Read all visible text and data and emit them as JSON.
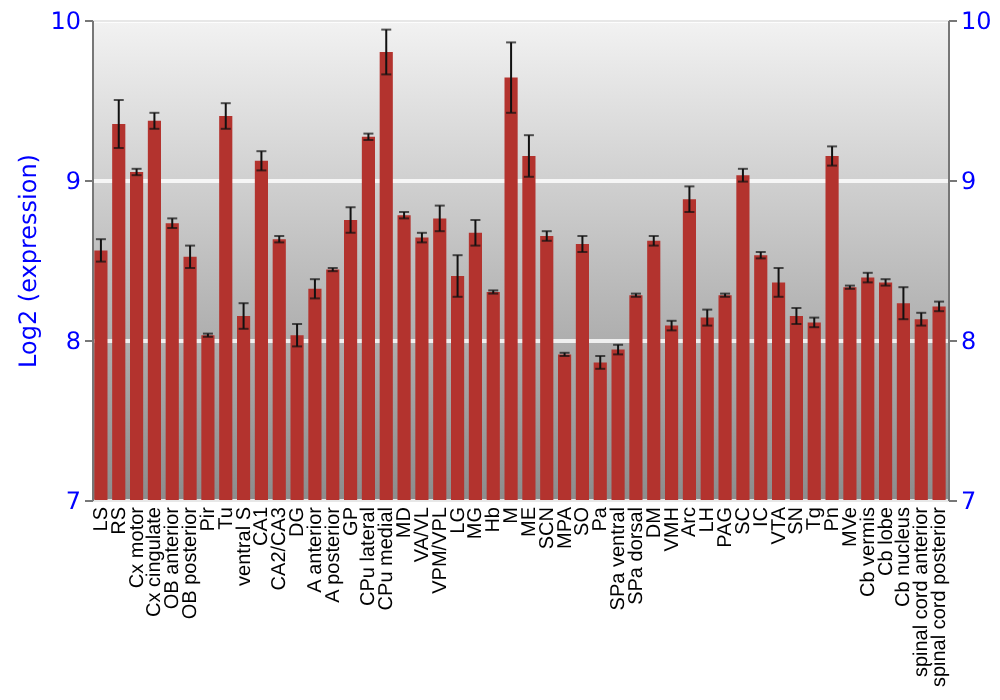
{
  "chart_data": {
    "type": "bar",
    "ylabel": "Log2 (expression)",
    "categories": [
      "LS",
      "RS",
      "Cx motor",
      "Cx cingulate",
      "OB anterior",
      "OB posterior",
      "Pir",
      "Tu",
      "ventral S",
      "CA1",
      "CA2/CA3",
      "DG",
      "A anterior",
      "A posterior",
      "GP",
      "CPu lateral",
      "CPu medial",
      "MD",
      "VA/VL",
      "VPM/VPL",
      "LG",
      "MG",
      "Hb",
      "M",
      "ME",
      "SCN",
      "MPA",
      "SO",
      "Pa",
      "SPa ventral",
      "SPa dorsal",
      "DM",
      "VMH",
      "Arc",
      "LH",
      "PAG",
      "SC",
      "IC",
      "VTA",
      "SN",
      "Tg",
      "Pn",
      "MVe",
      "Cb vermis",
      "Cb lobe",
      "Cb nucleus",
      "spinal cord anterior",
      "spinal cord posterior"
    ],
    "values": [
      8.56,
      9.35,
      9.05,
      9.37,
      8.73,
      8.52,
      8.03,
      9.4,
      8.15,
      9.12,
      8.63,
      8.03,
      8.32,
      8.44,
      8.75,
      9.27,
      9.8,
      8.78,
      8.64,
      8.76,
      8.4,
      8.67,
      8.3,
      9.64,
      9.15,
      8.65,
      7.91,
      8.6,
      7.86,
      7.94,
      8.28,
      8.62,
      8.09,
      8.88,
      8.14,
      8.28,
      9.03,
      8.53,
      8.36,
      8.15,
      8.11,
      9.15,
      8.33,
      8.39,
      8.36,
      8.23,
      8.13,
      8.21
    ],
    "errors": [
      0.07,
      0.15,
      0.02,
      0.05,
      0.03,
      0.07,
      0.01,
      0.08,
      0.08,
      0.06,
      0.02,
      0.07,
      0.06,
      0.01,
      0.08,
      0.02,
      0.14,
      0.02,
      0.03,
      0.08,
      0.13,
      0.08,
      0.01,
      0.22,
      0.13,
      0.03,
      0.01,
      0.05,
      0.04,
      0.03,
      0.01,
      0.03,
      0.03,
      0.08,
      0.05,
      0.01,
      0.04,
      0.02,
      0.09,
      0.05,
      0.03,
      0.06,
      0.01,
      0.03,
      0.02,
      0.1,
      0.04,
      0.03
    ],
    "color": "#b3332e",
    "ylim": [
      7,
      10
    ],
    "yticks": [
      7,
      8,
      9,
      10
    ],
    "y2lim": [
      7,
      10
    ],
    "y2ticks": [
      7,
      8,
      9,
      10
    ],
    "grid": "y"
  }
}
